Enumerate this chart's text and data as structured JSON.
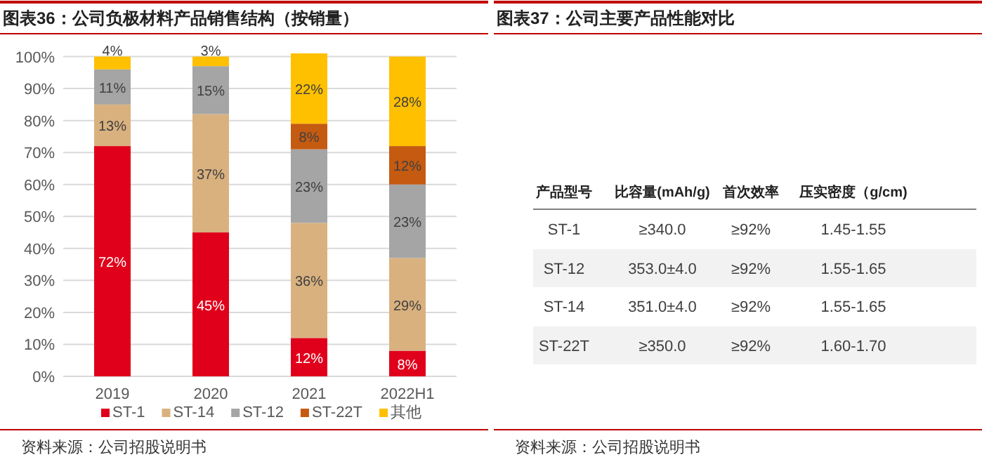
{
  "chart_data": [
    {
      "type": "bar",
      "stacked": true,
      "title": "图表36：公司负极材料产品销售结构（按销量）",
      "categories": [
        "2019",
        "2020",
        "2021",
        "2022H1"
      ],
      "series": [
        {
          "name": "ST-1",
          "color": "#e0001b",
          "values": [
            72,
            45,
            12,
            8
          ],
          "value_labels": [
            "72%",
            "45%",
            "12%",
            "8%"
          ]
        },
        {
          "name": "ST-14",
          "color": "#d9b17f",
          "values": [
            13,
            37,
            36,
            29
          ],
          "value_labels": [
            "13%",
            "37%",
            "36%",
            "29%"
          ]
        },
        {
          "name": "ST-12",
          "color": "#a5a5a5",
          "values": [
            11,
            15,
            23,
            23
          ],
          "value_labels": [
            "11%",
            "15%",
            "23%",
            "23%"
          ]
        },
        {
          "name": "ST-22T",
          "color": "#c55a11",
          "values": [
            null,
            null,
            8,
            12
          ],
          "value_labels": [
            null,
            null,
            "8%",
            "12%"
          ]
        },
        {
          "name": "其他",
          "color": "#ffc000",
          "values": [
            4,
            3,
            22,
            28
          ],
          "value_labels": [
            "4%",
            "3%",
            "22%",
            "28%"
          ]
        }
      ],
      "ylim": [
        0,
        101
      ],
      "yticks": [
        {
          "value": 0,
          "label": "0%"
        },
        {
          "value": 10,
          "label": "10%"
        },
        {
          "value": 20,
          "label": "20%"
        },
        {
          "value": 30,
          "label": "30%"
        },
        {
          "value": 40,
          "label": "40%"
        },
        {
          "value": 50,
          "label": "50%"
        },
        {
          "value": 60,
          "label": "60%"
        },
        {
          "value": 70,
          "label": "70%"
        },
        {
          "value": 80,
          "label": "80%"
        },
        {
          "value": 90,
          "label": "90%"
        },
        {
          "value": 100,
          "label": "100%"
        }
      ],
      "grid": "y",
      "legend": "bottom",
      "annotations": [
        "资料来源：公司招股说明书"
      ]
    },
    {
      "type": "other",
      "title": "图表37：公司主要产品性能对比",
      "annotations": [
        "产品型号",
        "比容量(mAh/g)",
        "首次效率",
        "压实密度（g/cm)",
        "ST-1",
        "≥340.0",
        "≥92%",
        "1.45-1.55",
        "ST-12",
        "353.0±4.0",
        "≥92%",
        "1.55-1.65",
        "ST-14",
        "351.0±4.0",
        "≥92%",
        "1.55-1.65",
        "ST-22T",
        "≥350.0",
        "≥92%",
        "1.60-1.70",
        "资料来源：公司招股说明书"
      ]
    }
  ]
}
